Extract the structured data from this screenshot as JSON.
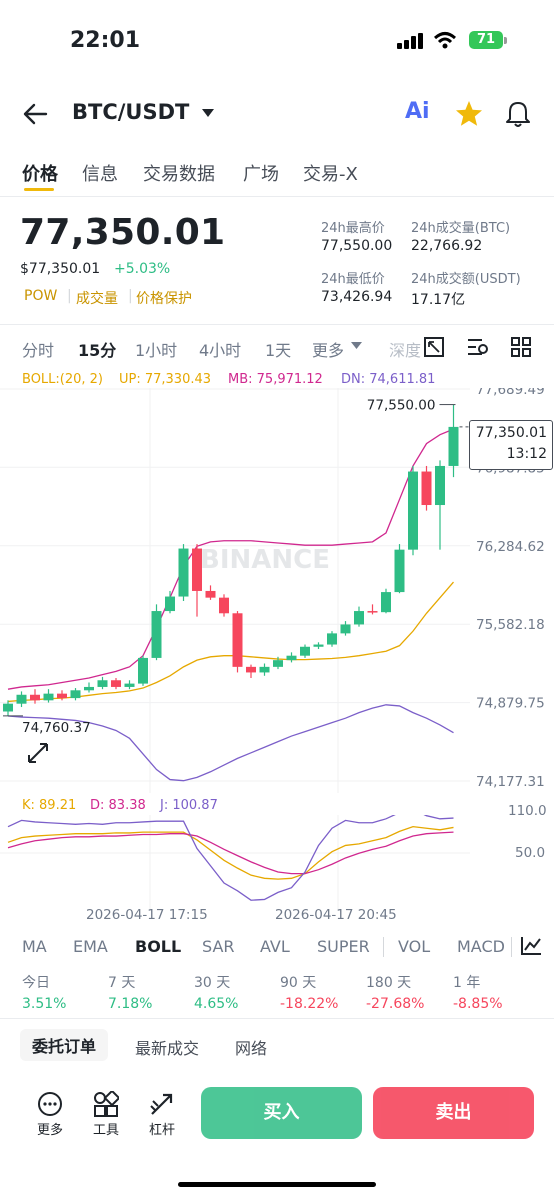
{
  "status_bar": {
    "time": "22:01",
    "battery": "71"
  },
  "header": {
    "pair": "BTC/USDT",
    "ai_label": "Ai"
  },
  "tabs": [
    "价格",
    "信息",
    "交易数据",
    "广场",
    "交易-X"
  ],
  "ticker": {
    "last_price": "77,350.01",
    "usd_price": "$77,350.01",
    "change_pct": "+5.03%",
    "tags": [
      "POW",
      "成交量",
      "价格保护"
    ],
    "high_label": "24h最高价",
    "high_value": "77,550.00",
    "vol_btc_label": "24h成交量(BTC)",
    "vol_btc_value": "22,766.92",
    "low_label": "24h最低价",
    "low_value": "73,426.94",
    "vol_usdt_label": "24h成交额(USDT)",
    "vol_usdt_value": "17.17亿"
  },
  "intervals": [
    "分时",
    "15分",
    "1小时",
    "4小时",
    "1天",
    "更多",
    "深度"
  ],
  "boll": {
    "label": "BOLL:(20, 2)",
    "up": "UP: 77,330.43",
    "mb": "MB: 75,971.12",
    "dn": "DN: 74,611.81"
  },
  "chart": {
    "y_ticks": [
      "77,689.49",
      "76,987.85",
      "76,284.62",
      "75,582.18",
      "74,879.75",
      "74,177.31"
    ],
    "high_marker": "77,550.00",
    "low_marker": "74,760.37",
    "current_price": "77,350.01",
    "countdown": "13:12",
    "watermark": "BINANCE",
    "x_ticks": [
      "2026-04-17 17:15",
      "2026-04-17 20:45"
    ],
    "colors": {
      "up": "#2ebd85",
      "down": "#f6465d",
      "mb": "#e6a800",
      "up_band": "#d0288f",
      "dn_band": "#7b5fc9"
    }
  },
  "kdj": {
    "k": "K: 89.21",
    "d": "D: 83.38",
    "j": "J: 100.87",
    "y_ticks": [
      "110.0",
      "50.0"
    ]
  },
  "indicators": [
    "MA",
    "EMA",
    "BOLL",
    "SAR",
    "AVL",
    "SUPER",
    "VOL",
    "MACD"
  ],
  "performance": [
    {
      "label": "今日",
      "value": "3.51%",
      "dir": "up"
    },
    {
      "label": "7 天",
      "value": "7.18%",
      "dir": "up"
    },
    {
      "label": "30 天",
      "value": "4.65%",
      "dir": "up"
    },
    {
      "label": "90 天",
      "value": "-18.22%",
      "dir": "down"
    },
    {
      "label": "180 天",
      "value": "-27.68%",
      "dir": "down"
    },
    {
      "label": "1 年",
      "value": "-8.85%",
      "dir": "down"
    }
  ],
  "order_tabs": [
    "委托订单",
    "最新成交",
    "网络"
  ],
  "toolbar": {
    "more": "更多",
    "tools": "工具",
    "leverage": "杠杆",
    "buy": "买入",
    "sell": "卖出"
  }
}
